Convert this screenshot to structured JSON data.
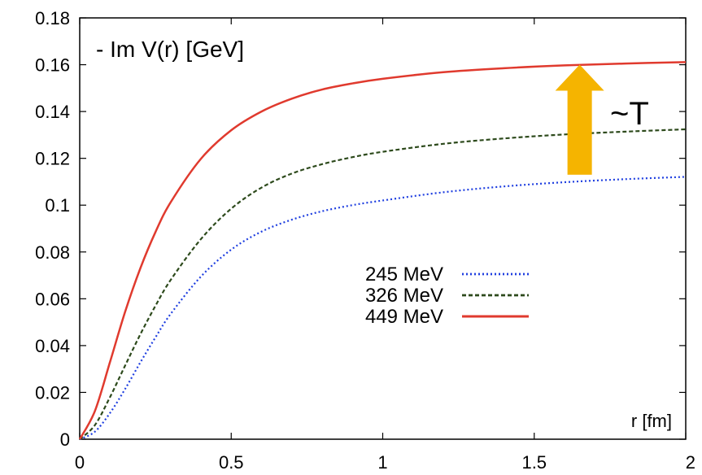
{
  "chart_data": {
    "type": "line",
    "title": "",
    "ylabel": "- Im V(r) [GeV]",
    "xlabel": "r [fm]",
    "xlim": [
      0,
      2
    ],
    "ylim": [
      0,
      0.18
    ],
    "x_ticks": [
      "0",
      "0.5",
      "1",
      "1.5",
      "2"
    ],
    "y_ticks": [
      "0",
      "0.02",
      "0.04",
      "0.06",
      "0.08",
      "0.1",
      "0.12",
      "0.14",
      "0.16",
      "0.18"
    ],
    "legend_position": "center-right",
    "grid": false,
    "annotation": {
      "text": "~T",
      "arrow_color": "#f5b400",
      "arrow_x": 1.65,
      "arrow_from_y": 0.113,
      "arrow_to_y": 0.16
    },
    "series": [
      {
        "name": "245 MeV",
        "style": "dotted",
        "color": "#1f3fe0",
        "x": [
          0,
          0.05,
          0.1,
          0.15,
          0.2,
          0.25,
          0.3,
          0.4,
          0.5,
          0.6,
          0.7,
          0.8,
          0.9,
          1.0,
          1.2,
          1.4,
          1.6,
          1.8,
          2.0
        ],
        "y": [
          0,
          0.0032,
          0.0112,
          0.0215,
          0.0328,
          0.0435,
          0.0535,
          0.0695,
          0.081,
          0.0887,
          0.0938,
          0.0974,
          0.1,
          0.102,
          0.1055,
          0.108,
          0.1098,
          0.1111,
          0.1121
        ]
      },
      {
        "name": "326 MeV",
        "style": "dashed",
        "color": "#2d4a1c",
        "x": [
          0,
          0.05,
          0.1,
          0.15,
          0.2,
          0.25,
          0.3,
          0.4,
          0.5,
          0.6,
          0.7,
          0.8,
          0.9,
          1.0,
          1.2,
          1.4,
          1.6,
          1.8,
          2.0
        ],
        "y": [
          0,
          0.006,
          0.018,
          0.0315,
          0.0448,
          0.057,
          0.068,
          0.0855,
          0.0985,
          0.1075,
          0.1135,
          0.1175,
          0.1205,
          0.1228,
          0.1262,
          0.1285,
          0.1302,
          0.1314,
          0.1324
        ]
      },
      {
        "name": "449 MeV",
        "style": "solid",
        "color": "#e03a2e",
        "x": [
          0,
          0.05,
          0.1,
          0.15,
          0.2,
          0.25,
          0.3,
          0.4,
          0.5,
          0.6,
          0.7,
          0.8,
          0.9,
          1.0,
          1.2,
          1.4,
          1.6,
          1.8,
          2.0
        ],
        "y": [
          0,
          0.012,
          0.033,
          0.0545,
          0.073,
          0.0885,
          0.1012,
          0.1198,
          0.132,
          0.14,
          0.1455,
          0.1494,
          0.152,
          0.154,
          0.1568,
          0.1585,
          0.1597,
          0.1605,
          0.1611
        ]
      }
    ]
  }
}
